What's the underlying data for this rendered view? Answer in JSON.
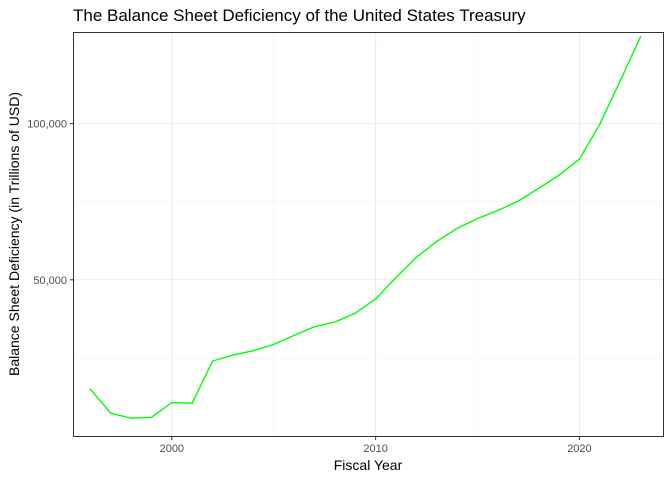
{
  "chart_data": {
    "type": "line",
    "title": "The Balance Sheet Deficiency of the United States Treasury",
    "xlabel": "Fiscal Year",
    "ylabel": "Balance Sheet Deficiency (in Trillions of USD)",
    "xlim": [
      1995.2,
      2024.1
    ],
    "ylim": [
      0,
      129000
    ],
    "x_ticks": [
      2000,
      2010,
      2020
    ],
    "x_tick_labels": [
      "2000",
      "2010",
      "2020"
    ],
    "y_ticks": [
      50000,
      100000
    ],
    "y_tick_labels": [
      "50,000",
      "100,000"
    ],
    "grid": true,
    "series": [
      {
        "color": "#00ff00",
        "x": [
          1996,
          1997,
          1998,
          1999,
          2000,
          2001,
          2002,
          2003,
          2004,
          2005,
          2006,
          2007,
          2008,
          2009,
          2010,
          2011,
          2012,
          2013,
          2014,
          2015,
          2016,
          2017,
          2018,
          2019,
          2020,
          2021,
          2022,
          2023
        ],
        "values": [
          15000,
          7300,
          5700,
          6000,
          10700,
          10500,
          24000,
          25900,
          27300,
          29300,
          32200,
          35000,
          36500,
          39300,
          43900,
          50700,
          57200,
          62300,
          66500,
          69600,
          72200,
          75200,
          79300,
          83500,
          88600,
          99800,
          113700,
          127800
        ]
      }
    ]
  }
}
